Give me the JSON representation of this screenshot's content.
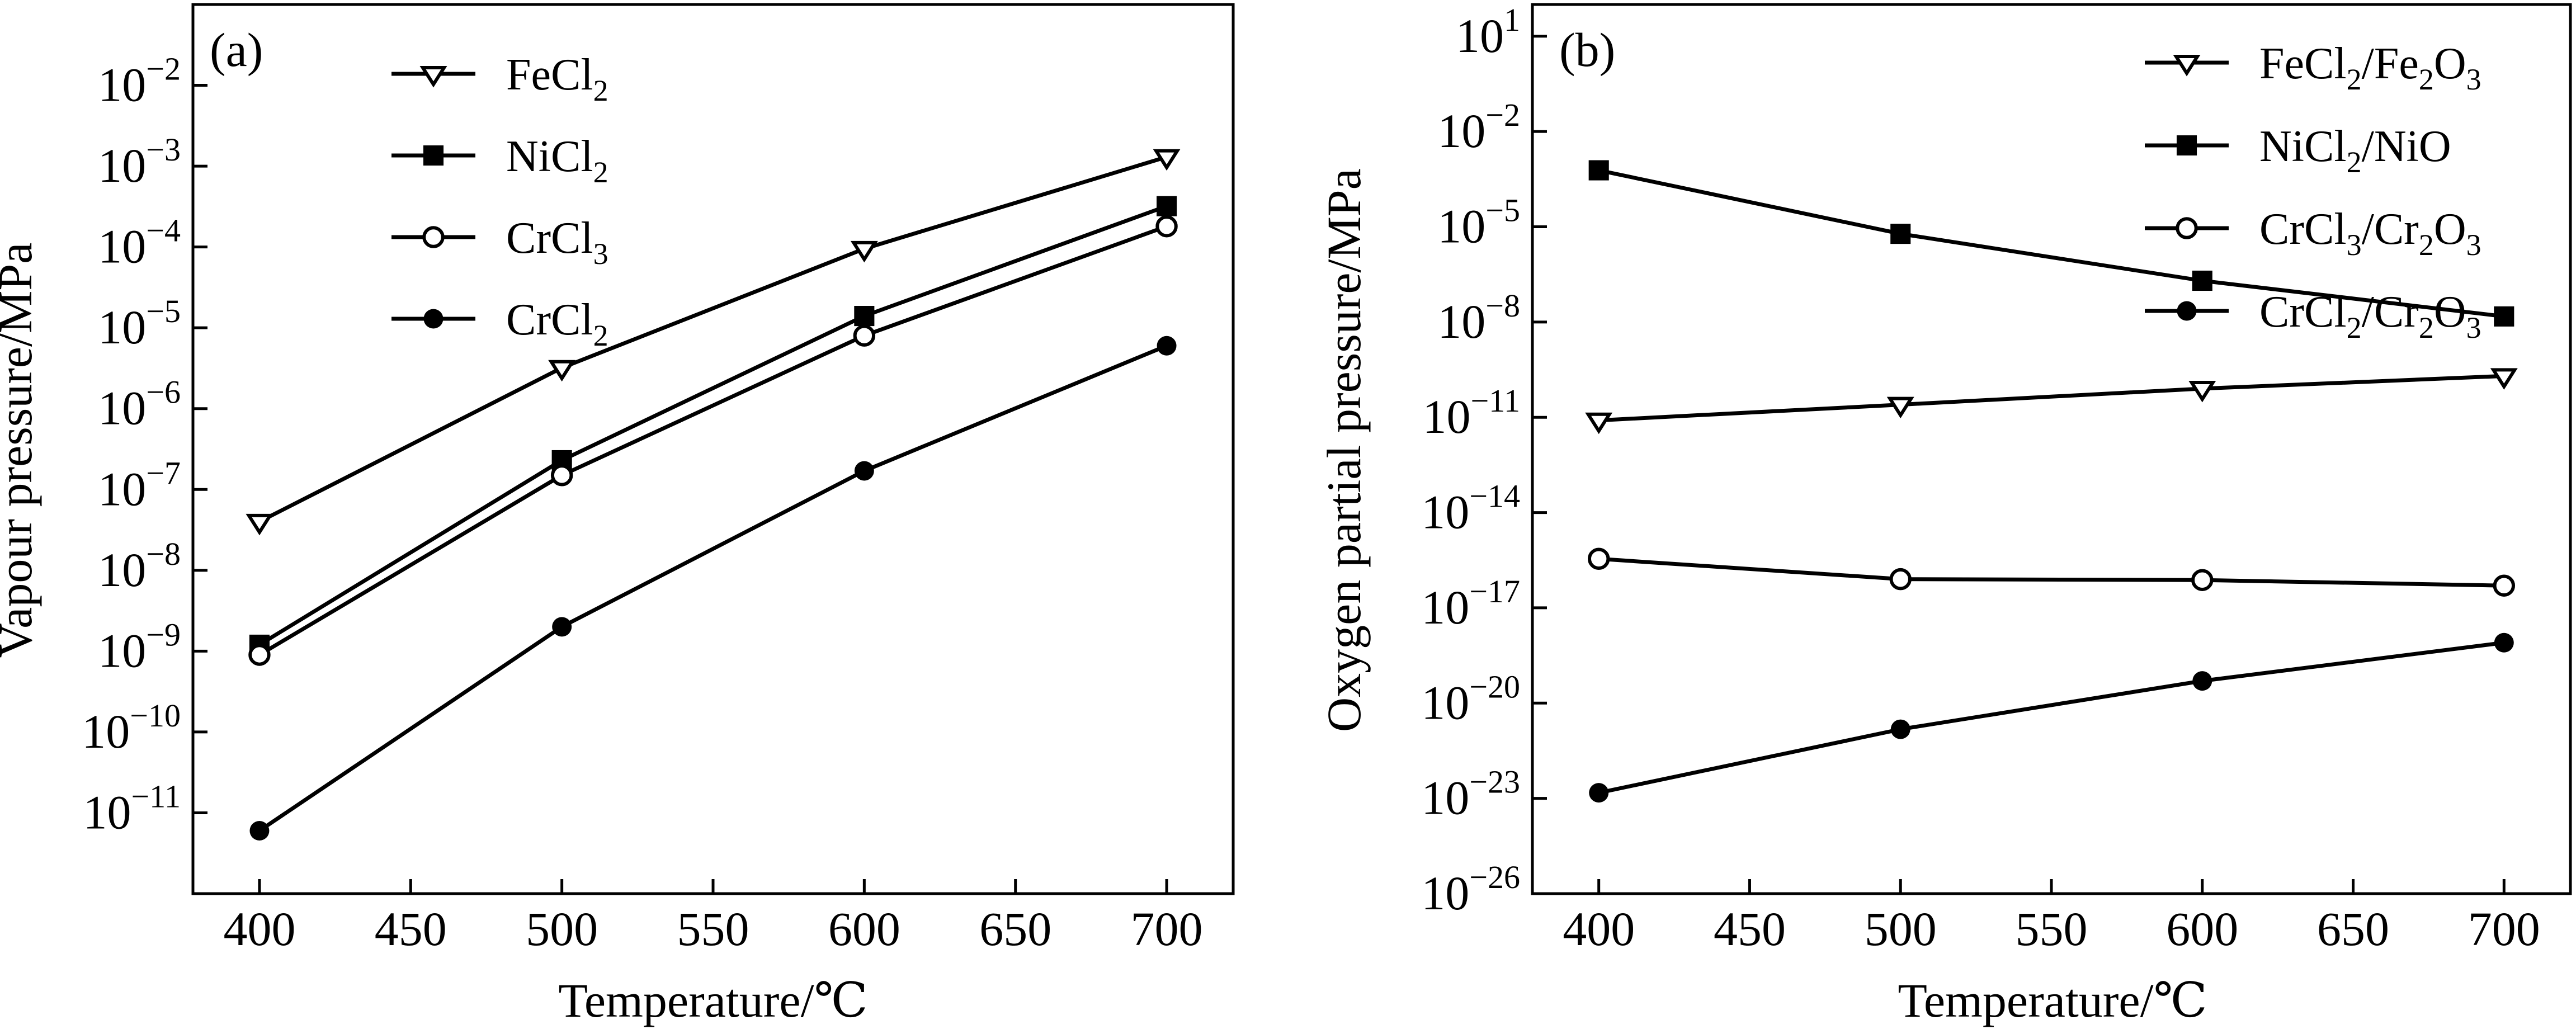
{
  "chart_data": [
    {
      "type": "line",
      "panel_label": "(a)",
      "xlabel": "Temperature/℃",
      "ylabel": "Vapour pressure/MPa",
      "y_scale": "log",
      "x_ticks": [
        400,
        450,
        500,
        550,
        600,
        650,
        700
      ],
      "x_tick_labels": [
        "400",
        "450",
        "500",
        "550",
        "600",
        "650",
        "700"
      ],
      "xlim": [
        378,
        722
      ],
      "y_tick_exponents": [
        -11,
        -10,
        -9,
        -8,
        -7,
        -6,
        -5,
        -4,
        -3,
        -2
      ],
      "ylim": [
        1e-12,
        0.1
      ],
      "legend_position": "top-center",
      "series": [
        {
          "name": "FeCl2",
          "name_parts": [
            {
              "t": "FeCl"
            },
            {
              "t": "2",
              "sub": true
            }
          ],
          "marker": "triangle-down-open",
          "x": [
            400,
            500,
            600,
            700
          ],
          "y": [
            4e-08,
            3.2e-06,
            9.5e-05,
            0.0013
          ]
        },
        {
          "name": "NiCl2",
          "name_parts": [
            {
              "t": "NiCl"
            },
            {
              "t": "2",
              "sub": true
            }
          ],
          "marker": "square-filled",
          "x": [
            400,
            500,
            600,
            700
          ],
          "y": [
            1.2e-09,
            2.3e-07,
            1.4e-05,
            0.00032
          ]
        },
        {
          "name": "CrCl3",
          "name_parts": [
            {
              "t": "CrCl"
            },
            {
              "t": "3",
              "sub": true
            }
          ],
          "marker": "circle-open",
          "x": [
            400,
            500,
            600,
            700
          ],
          "y": [
            9e-10,
            1.5e-07,
            8e-06,
            0.00018
          ]
        },
        {
          "name": "CrCl2",
          "name_parts": [
            {
              "t": "CrCl"
            },
            {
              "t": "2",
              "sub": true
            }
          ],
          "marker": "circle-filled",
          "x": [
            400,
            500,
            600,
            700
          ],
          "y": [
            6e-12,
            2e-09,
            1.7e-07,
            6e-06
          ]
        }
      ]
    },
    {
      "type": "line",
      "panel_label": "(b)",
      "xlabel": "Temperature/℃",
      "ylabel": "Oxygen partial pressure/MPa",
      "y_scale": "log",
      "x_ticks": [
        400,
        450,
        500,
        550,
        600,
        650,
        700
      ],
      "x_tick_labels": [
        "400",
        "450",
        "500",
        "550",
        "600",
        "650",
        "700"
      ],
      "xlim": [
        378,
        722
      ],
      "y_tick_exponents": [
        -26,
        -23,
        -20,
        -17,
        -14,
        -11,
        -8,
        -5,
        -2,
        1
      ],
      "ylim": [
        1e-26,
        100.0
      ],
      "legend_position": "top-right",
      "series": [
        {
          "name": "FeCl2/Fe2O3",
          "name_parts": [
            {
              "t": "FeCl"
            },
            {
              "t": "2",
              "sub": true
            },
            {
              "t": "/Fe"
            },
            {
              "t": "2",
              "sub": true
            },
            {
              "t": "O"
            },
            {
              "t": "3",
              "sub": true
            }
          ],
          "marker": "triangle-down-open",
          "x": [
            400,
            500,
            600,
            700
          ],
          "y": [
            8e-12,
            2.5e-11,
            8e-11,
            2e-10
          ]
        },
        {
          "name": "NiCl2/NiO",
          "name_parts": [
            {
              "t": "NiCl"
            },
            {
              "t": "2",
              "sub": true
            },
            {
              "t": "/NiO"
            }
          ],
          "marker": "square-filled",
          "x": [
            400,
            500,
            600,
            700
          ],
          "y": [
            0.0006,
            6e-06,
            2e-07,
            1.5e-08
          ]
        },
        {
          "name": "CrCl3/Cr2O3",
          "name_parts": [
            {
              "t": "CrCl"
            },
            {
              "t": "3",
              "sub": true
            },
            {
              "t": "/Cr"
            },
            {
              "t": "2",
              "sub": true
            },
            {
              "t": "O"
            },
            {
              "t": "3",
              "sub": true
            }
          ],
          "marker": "circle-open",
          "x": [
            400,
            500,
            600,
            700
          ],
          "y": [
            3.5e-16,
            8e-17,
            7.5e-17,
            5e-17
          ]
        },
        {
          "name": "CrCl2/Cr2O3",
          "name_parts": [
            {
              "t": "CrCl"
            },
            {
              "t": "2",
              "sub": true
            },
            {
              "t": "/Cr"
            },
            {
              "t": "2",
              "sub": true
            },
            {
              "t": "O"
            },
            {
              "t": "3",
              "sub": true
            }
          ],
          "marker": "circle-filled",
          "x": [
            400,
            500,
            600,
            700
          ],
          "y": [
            1.5e-23,
            1.5e-21,
            5e-20,
            8e-19
          ]
        }
      ]
    }
  ]
}
